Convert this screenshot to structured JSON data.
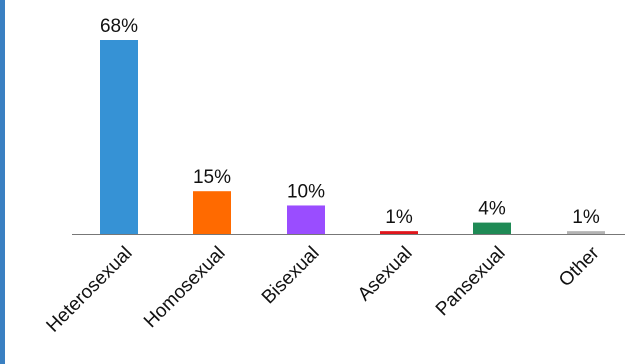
{
  "colors": {
    "frame_accent": "#3a80c2",
    "axis": "#777777"
  },
  "chart_data": {
    "type": "bar",
    "title": "",
    "xlabel": "",
    "ylabel": "",
    "categories": [
      "Heterosexual",
      "Homosexual",
      "Bisexual",
      "Asexual",
      "Pansexual",
      "Other"
    ],
    "values": [
      68,
      15,
      10,
      1,
      4,
      1
    ],
    "data_labels": [
      "68%",
      "15%",
      "10%",
      "1%",
      "4%",
      "1%"
    ],
    "colors": [
      "#3692d5",
      "#ff6a00",
      "#9a4dff",
      "#e0151b",
      "#1f8a55",
      "#b3b3b3"
    ],
    "ylim": [
      0,
      68
    ],
    "grid": false,
    "legend": "none"
  }
}
